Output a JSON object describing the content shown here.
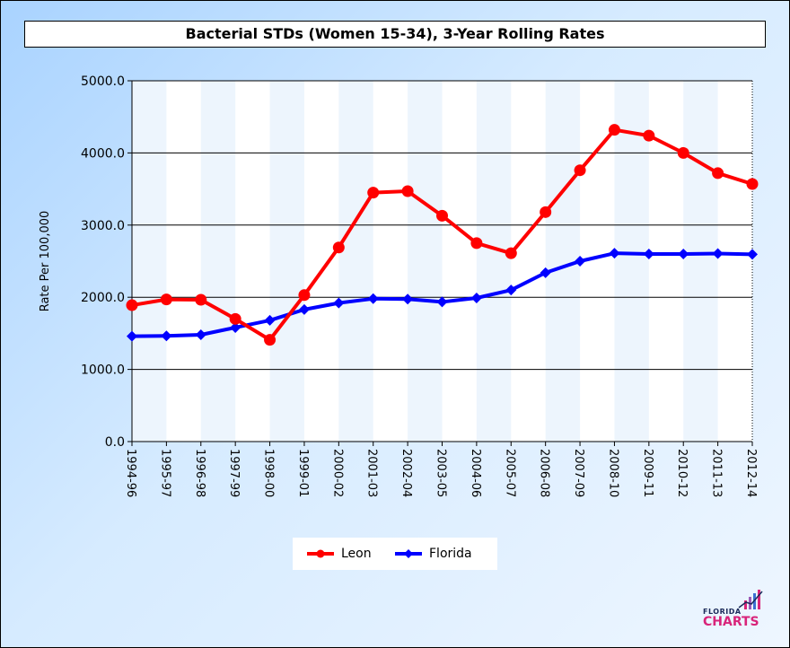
{
  "chart_data": {
    "type": "line",
    "title": "Bacterial STDs (Women 15-34), 3-Year Rolling Rates",
    "ylabel": "Rate Per 100,000",
    "xlabel": "",
    "ylim": [
      0,
      5000
    ],
    "y_ticks": [
      "0.0",
      "1000.0",
      "2000.0",
      "3000.0",
      "4000.0",
      "5000.0"
    ],
    "categories": [
      "1994-96",
      "1995-97",
      "1996-98",
      "1997-99",
      "1998-00",
      "1999-01",
      "2000-02",
      "2001-03",
      "2002-04",
      "2003-05",
      "2004-06",
      "2005-07",
      "2006-08",
      "2007-09",
      "2008-10",
      "2009-11",
      "2010-12",
      "2011-13",
      "2012-14"
    ],
    "series": [
      {
        "name": "Leon",
        "color": "#ff0000",
        "marker": "circle",
        "values": [
          1890,
          1970,
          1965,
          1700,
          1410,
          2030,
          2690,
          3450,
          3470,
          3130,
          2750,
          2610,
          3180,
          3760,
          4320,
          4240,
          4000,
          3720,
          3570
        ]
      },
      {
        "name": "Florida",
        "color": "#0000ff",
        "marker": "diamond",
        "values": [
          1460,
          1465,
          1480,
          1580,
          1680,
          1830,
          1920,
          1980,
          1975,
          1935,
          1990,
          2100,
          2340,
          2500,
          2610,
          2600,
          2600,
          2605,
          2595
        ]
      }
    ],
    "grid": "horizontal",
    "legend_position": "bottom-center"
  },
  "logo": {
    "top_text": "FLORIDA",
    "bottom_text": "CHARTS"
  }
}
